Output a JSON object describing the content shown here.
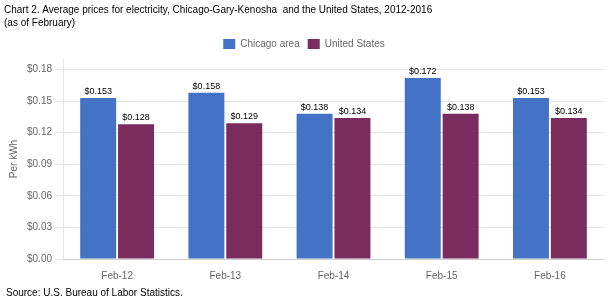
{
  "chart_data": {
    "type": "bar",
    "title": "Chart 2. Average prices for electricity, Chicago-Gary-Kenosha  and the United States, 2012-2016",
    "subtitle": "(as of February)",
    "y_label": "Per kWh",
    "annotations": [
      "Source: U.S. Bureau of Labor Statistics."
    ],
    "categories": [
      "Feb-12",
      "Feb-13",
      "Feb-14",
      "Feb-15",
      "Feb-16"
    ],
    "series": [
      {
        "name": "Chicago area",
        "color": "#4472C4",
        "values": [
          0.153,
          0.158,
          0.138,
          0.172,
          0.153
        ],
        "value_labels": [
          "$0.153",
          "$0.158",
          "$0.138",
          "$0.172",
          "$0.153"
        ]
      },
      {
        "name": "United States",
        "color": "#7B2C5E",
        "values": [
          0.128,
          0.129,
          0.134,
          0.138,
          0.134
        ],
        "value_labels": [
          "$0.128",
          "$0.129",
          "$0.134",
          "$0.138",
          "$0.134"
        ]
      }
    ],
    "ylim": [
      0,
      0.19
    ],
    "yticks": [
      {
        "value": 0.0,
        "label": "$0.00"
      },
      {
        "value": 0.03,
        "label": "$0.03"
      },
      {
        "value": 0.06,
        "label": "$0.06"
      },
      {
        "value": 0.09,
        "label": "$0.09"
      },
      {
        "value": 0.12,
        "label": "$0.12"
      },
      {
        "value": 0.15,
        "label": "$0.15"
      },
      {
        "value": 0.18,
        "label": "$0.18"
      }
    ],
    "grid": true,
    "legend": "top",
    "data_labels": true
  }
}
